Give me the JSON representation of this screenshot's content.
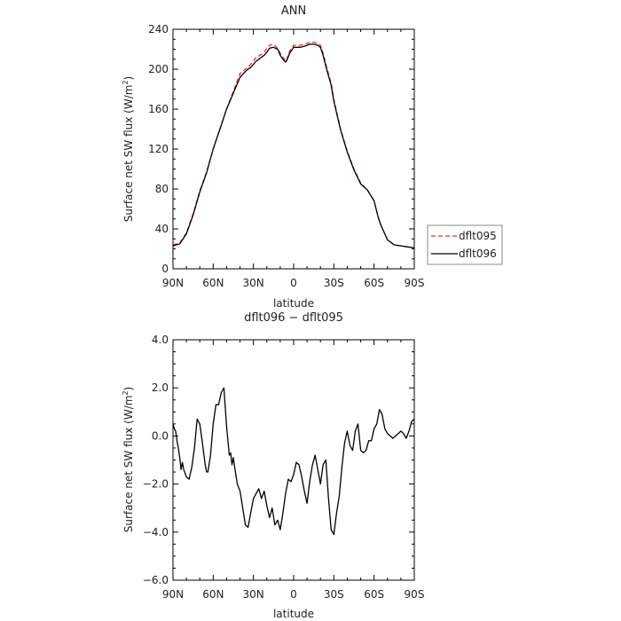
{
  "chart_data": [
    {
      "type": "line",
      "title": "ANN",
      "xlabel": "latitude",
      "ylabel": "Surface net SW flux (W/m",
      "ylabel_sup": "2",
      "ylabel_close": ")",
      "xlim": [
        90,
        -90
      ],
      "ylim": [
        0,
        240
      ],
      "xticks": [
        90,
        60,
        30,
        0,
        -30,
        -60,
        -90
      ],
      "xticklabels": [
        "90N",
        "60N",
        "30N",
        "0",
        "30S",
        "60S",
        "90S"
      ],
      "yticks": [
        0,
        40,
        80,
        120,
        160,
        200,
        240
      ],
      "yticklabels": [
        "0",
        "40",
        "80",
        "120",
        "160",
        "200",
        "240"
      ],
      "legend": "right",
      "series": [
        {
          "name": "dflt095",
          "color": "#e8302c",
          "style": "dashed",
          "x": [
            90,
            85,
            80,
            75,
            70,
            65,
            60,
            55,
            50,
            45,
            40,
            35,
            32,
            30,
            28,
            25,
            22,
            20,
            18,
            15,
            12,
            10,
            8,
            6,
            5,
            3,
            0,
            -3,
            -5,
            -8,
            -10,
            -12,
            -15,
            -18,
            -20,
            -22,
            -25,
            -28,
            -30,
            -35,
            -40,
            -45,
            -50,
            -55,
            -60,
            -63,
            -65,
            -70,
            -75,
            -80,
            -85,
            -90
          ],
          "y": [
            24,
            26,
            36,
            55,
            78,
            97,
            120,
            140,
            160,
            178,
            196,
            201,
            205,
            208,
            212,
            214,
            217,
            221,
            224,
            225,
            221,
            216,
            212,
            208,
            210,
            218,
            224,
            224,
            224,
            225,
            226,
            227,
            227,
            226,
            224,
            216,
            200,
            186,
            170,
            140,
            118,
            100,
            86,
            79,
            68,
            52,
            44,
            29,
            24,
            23,
            22,
            21
          ]
        },
        {
          "name": "dflt096",
          "color": "#000000",
          "style": "solid",
          "x": [
            90,
            85,
            80,
            75,
            70,
            65,
            60,
            55,
            50,
            45,
            40,
            35,
            32,
            30,
            28,
            25,
            22,
            20,
            18,
            15,
            12,
            10,
            8,
            6,
            5,
            3,
            0,
            -3,
            -5,
            -8,
            -10,
            -12,
            -15,
            -18,
            -20,
            -22,
            -25,
            -28,
            -30,
            -35,
            -40,
            -45,
            -50,
            -55,
            -60,
            -63,
            -65,
            -70,
            -75,
            -80,
            -85,
            -90
          ],
          "y": [
            23,
            25,
            35,
            54,
            77,
            96,
            120,
            140,
            160,
            176,
            192,
            199,
            202,
            205,
            208,
            211,
            214,
            217,
            221,
            222,
            220,
            214,
            210,
            207,
            209,
            216,
            222,
            222,
            222,
            223,
            224,
            225,
            225,
            224,
            222,
            214,
            198,
            184,
            168,
            139,
            117,
            99,
            85,
            79,
            68,
            52,
            44,
            29,
            24,
            23,
            22,
            21
          ]
        }
      ]
    },
    {
      "type": "line",
      "title": "dflt096 − dflt095",
      "xlabel": "latitude",
      "ylabel": "Surface net SW flux (W/m",
      "ylabel_sup": "2",
      "ylabel_close": ")",
      "xlim": [
        90,
        -90
      ],
      "ylim": [
        -6.0,
        4.0
      ],
      "xticks": [
        90,
        60,
        30,
        0,
        -30,
        -60,
        -90
      ],
      "xticklabels": [
        "90N",
        "60N",
        "30N",
        "0",
        "30S",
        "60S",
        "90S"
      ],
      "yticks": [
        -6,
        -4,
        -2,
        0,
        2,
        4
      ],
      "yticklabels": [
        "−6.0",
        "−4.0",
        "−2.0",
        "0.0",
        "2.0",
        "4.0"
      ],
      "series": [
        {
          "color": "#000000",
          "style": "solid",
          "x": [
            90,
            89,
            88,
            87,
            86,
            85,
            84,
            83,
            82,
            80,
            78,
            76,
            74,
            72,
            70,
            68,
            66,
            65,
            64,
            62,
            60,
            58,
            56,
            54,
            52,
            50,
            48,
            47,
            46,
            45,
            44,
            42,
            40,
            38,
            36,
            34,
            32,
            30,
            28,
            26,
            24,
            22,
            20,
            18,
            16,
            14,
            12,
            10,
            8,
            6,
            4,
            2,
            0,
            -2,
            -4,
            -6,
            -8,
            -10,
            -12,
            -14,
            -16,
            -18,
            -20,
            -22,
            -24,
            -26,
            -28,
            -30,
            -32,
            -34,
            -36,
            -38,
            -40,
            -42,
            -44,
            -46,
            -48,
            -50,
            -52,
            -54,
            -56,
            -58,
            -60,
            -62,
            -64,
            -66,
            -68,
            -70,
            -72,
            -74,
            -76,
            -78,
            -80,
            -82,
            -84,
            -86,
            -88,
            -90
          ],
          "y": [
            0.5,
            0.3,
            0.2,
            -0.2,
            -0.5,
            -0.9,
            -1.4,
            -1.1,
            -1.4,
            -1.7,
            -1.8,
            -1.3,
            -0.5,
            0.7,
            0.5,
            -0.3,
            -1.2,
            -1.5,
            -1.5,
            -0.8,
            0.5,
            1.3,
            1.3,
            1.8,
            2.0,
            0.4,
            -0.8,
            -0.7,
            -1.2,
            -0.9,
            -1.3,
            -2.0,
            -2.3,
            -3.0,
            -3.7,
            -3.8,
            -3.2,
            -2.6,
            -2.4,
            -2.2,
            -2.6,
            -2.3,
            -2.9,
            -3.4,
            -3.0,
            -3.7,
            -3.5,
            -3.9,
            -3.2,
            -2.4,
            -1.8,
            -1.9,
            -1.6,
            -1.1,
            -1.2,
            -1.7,
            -2.3,
            -2.8,
            -1.9,
            -1.2,
            -0.8,
            -1.4,
            -2.0,
            -1.2,
            -1.0,
            -2.6,
            -3.9,
            -4.1,
            -3.2,
            -2.5,
            -1.3,
            -0.3,
            0.2,
            -0.4,
            -0.6,
            0.2,
            0.5,
            -0.6,
            -0.7,
            -0.6,
            -0.2,
            -0.2,
            0.3,
            0.5,
            1.1,
            0.9,
            0.3,
            0.1,
            0.0,
            -0.1,
            0.0,
            0.1,
            0.2,
            0.1,
            -0.1,
            0.2,
            0.6,
            0.7
          ]
        }
      ]
    }
  ]
}
